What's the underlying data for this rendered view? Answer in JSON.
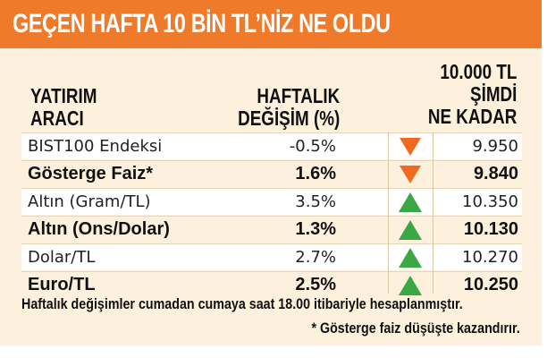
{
  "title": "GEÇEN HAFTA 10 BİN TL’NİZ NE OLDU",
  "headers": {
    "col1_line1": "YATIRIM",
    "col1_line2": "ARACI",
    "col2_line1": "HAFTALIK",
    "col2_line2": "DEĞİŞİM (%)",
    "col3_line1": "10.000 TL",
    "col3_line2": "ŞİMDİ",
    "col3_line3": "NE KADAR"
  },
  "rows": [
    {
      "instrument": "BIST100 Endeksi",
      "change": "-0.5%",
      "direction": "down",
      "value": "9.950"
    },
    {
      "instrument": "Gösterge Faiz*",
      "change": "1.6%",
      "direction": "down",
      "value": "9.840"
    },
    {
      "instrument": "Altın (Gram/TL)",
      "change": "3.5%",
      "direction": "up",
      "value": "10.350"
    },
    {
      "instrument": "Altın (Ons/Dolar)",
      "change": "1.3%",
      "direction": "up",
      "value": "10.130"
    },
    {
      "instrument": "Dolar/TL",
      "change": "2.7%",
      "direction": "up",
      "value": "10.270"
    },
    {
      "instrument": "Euro/TL",
      "change": "2.5%",
      "direction": "up",
      "value": "10.250"
    }
  ],
  "footnotes": {
    "note1": "Haftalık değişimler cumadan cumaya saat 18.00 itibariyle hesaplanmıştır.",
    "note2": "* Gösterge faiz düşüşte kazandırır."
  },
  "colors": {
    "banner": "#ef7a2a",
    "up": "#3aa845",
    "down": "#ef6a1f",
    "background": "#fdf1dd"
  }
}
